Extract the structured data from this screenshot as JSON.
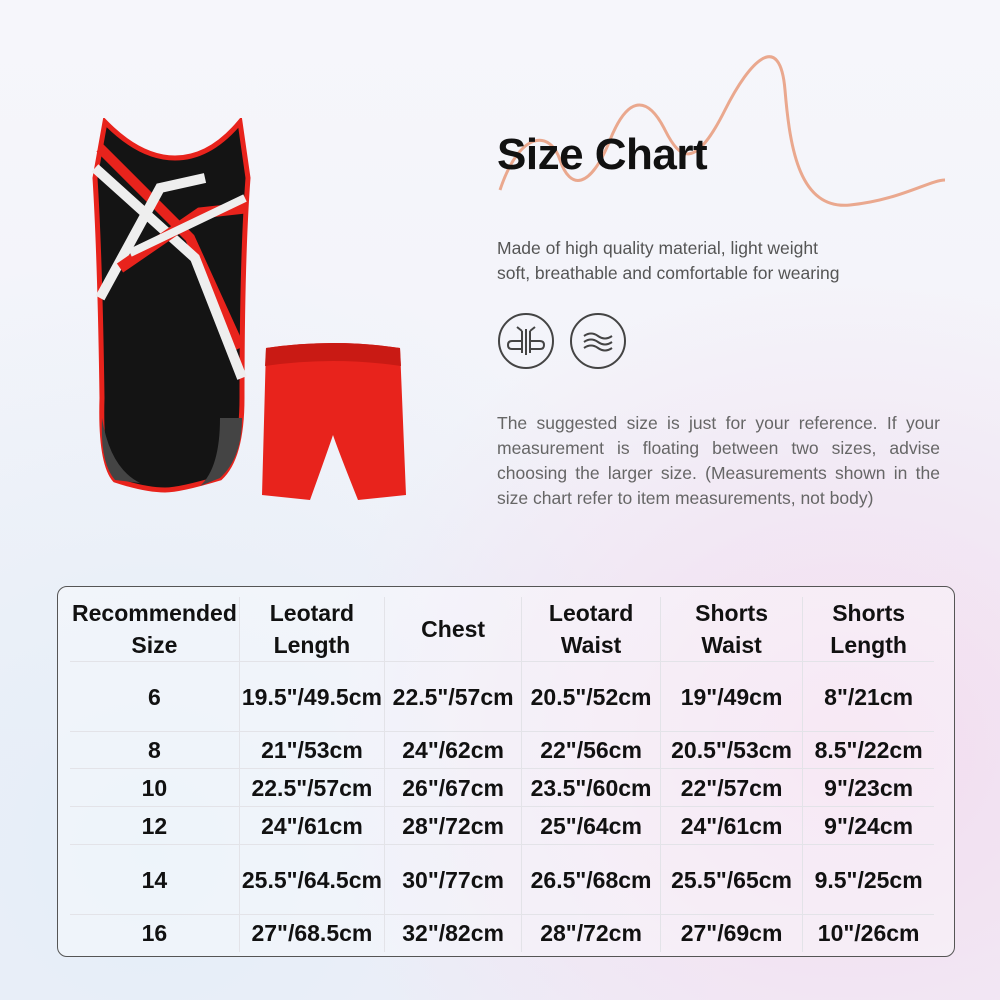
{
  "title": "Size Chart",
  "description": [
    "Made of high quality material, light weight",
    "soft, breathable and comfortable for wearing"
  ],
  "feature_icons": [
    "breathable-icon",
    "soft-wave-icon"
  ],
  "note": "The suggested size is just for your reference. If your measurement is floating between two sizes, advise choosing the larger size. (Measurements shown in the size chart refer to item measurements, not body)",
  "colors": {
    "accent_curve": "#e89a7a",
    "leotard": "#111111",
    "trim": "#e8231c",
    "shorts": "#e8231c"
  },
  "table": {
    "headers": [
      "Recommended Size",
      "Leotard Length",
      "Chest",
      "Leotard Waist",
      "Shorts Waist",
      "Shorts Length"
    ],
    "rows": [
      [
        "6",
        "19.5\"/49.5cm",
        "22.5\"/57cm",
        "20.5\"/52cm",
        "19\"/49cm",
        "8\"/21cm"
      ],
      [
        "8",
        "21\"/53cm",
        "24\"/62cm",
        "22\"/56cm",
        "20.5\"/53cm",
        "8.5\"/22cm"
      ],
      [
        "10",
        "22.5\"/57cm",
        "26\"/67cm",
        "23.5\"/60cm",
        "22\"/57cm",
        "9\"/23cm"
      ],
      [
        "12",
        "24\"/61cm",
        "28\"/72cm",
        "25\"/64cm",
        "24\"/61cm",
        "9\"/24cm"
      ],
      [
        "14",
        "25.5\"/64.5cm",
        "30\"/77cm",
        "26.5\"/68cm",
        "25.5\"/65cm",
        "9.5\"/25cm"
      ],
      [
        "16",
        "27\"/68.5cm",
        "32\"/82cm",
        "28\"/72cm",
        "27\"/69cm",
        "10\"/26cm"
      ]
    ]
  }
}
